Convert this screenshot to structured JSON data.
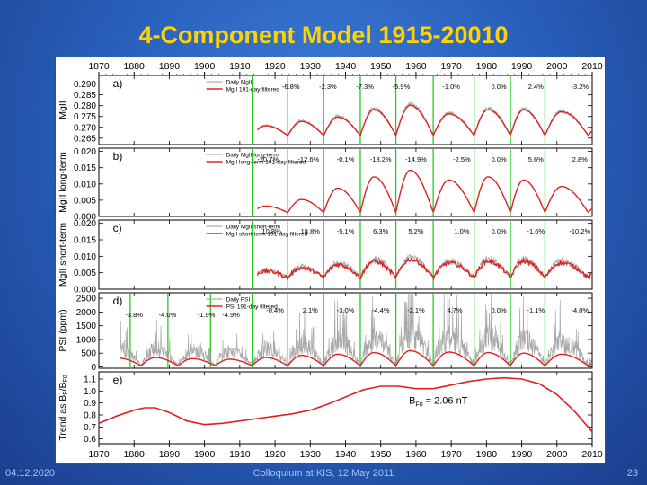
{
  "slide": {
    "title": "4-Component Model 1915-20010",
    "footer_date": "04.12.2020",
    "footer_event": "Colloquium at KIS, 12 May 2011",
    "page_number": "23"
  },
  "colors": {
    "daily": "#999999",
    "filtered": "#e02020",
    "cycle_line": "#22cc22",
    "axis": "#000000"
  },
  "chart_data": {
    "type": "line",
    "x_range": [
      1870,
      2010
    ],
    "x_ticks": [
      1870,
      1880,
      1890,
      1900,
      1910,
      1920,
      1930,
      1940,
      1950,
      1960,
      1970,
      1980,
      1990,
      2000,
      2010
    ],
    "cycle_minima": [
      1913.5,
      1923.6,
      1933.8,
      1944.2,
      1954.3,
      1964.9,
      1976.5,
      1986.8,
      1996.6
    ],
    "panels": [
      {
        "key": "a",
        "label": "a)",
        "ylabel": "MgII",
        "ylim": [
          0.262,
          0.294
        ],
        "yticks": [
          "0.290",
          "0.285",
          "0.280",
          "0.275",
          "0.270",
          "0.265"
        ],
        "ytick_values": [
          0.29,
          0.285,
          0.28,
          0.275,
          0.27,
          0.265
        ],
        "legend": [
          "Daily MgII",
          "MgII 191-day filtered"
        ],
        "data_start": 1915,
        "baseline": 0.2662,
        "amplitudes": [
          0.0045,
          0.0065,
          0.0085,
          0.012,
          0.014,
          0.01,
          0.012,
          0.012,
          0.011,
          0.006
        ],
        "noise": 0.006,
        "percents": [
          "-6.8%",
          "-2.3%",
          "-7.3%",
          "-5.9%",
          "-1.0%",
          "0.0%",
          "2.4%",
          "-3.2%"
        ],
        "percent_years": [
          1924.5,
          1935.0,
          1945.5,
          1955.8,
          1970.0,
          1983.5,
          1994.0,
          2006.5
        ]
      },
      {
        "key": "b",
        "label": "b)",
        "ylabel": "MgII long-term",
        "ylim": [
          0.0,
          0.021
        ],
        "yticks": [
          "0.020",
          "0.015",
          "0.010",
          "0.005",
          "0.000"
        ],
        "ytick_values": [
          0.02,
          0.015,
          0.01,
          0.005,
          0.0
        ],
        "legend": [
          "Daily MgII long-term",
          "MgII long-term 191-day filtered"
        ],
        "data_start": 1915,
        "baseline": 0.0012,
        "amplitudes": [
          0.002,
          0.004,
          0.0075,
          0.011,
          0.013,
          0.01,
          0.011,
          0.01,
          0.008,
          0.0035
        ],
        "noise": 0.0,
        "percents": [
          "-20.7%",
          "-12.6%",
          "-0.1%",
          "-18.2%",
          "-14.9%",
          "-2.5%",
          "0.0%",
          "5.6%",
          "2.8%"
        ],
        "percent_years": [
          1918.0,
          1929.5,
          1940.0,
          1950.0,
          1960.0,
          1973.0,
          1983.5,
          1994.0,
          2006.5
        ]
      },
      {
        "key": "c",
        "label": "c)",
        "ylabel": "MgII short-term",
        "ylim": [
          0.0,
          0.021
        ],
        "yticks": [
          "0.020",
          "0.015",
          "0.010",
          "0.005",
          "0.000"
        ],
        "ytick_values": [
          0.02,
          0.015,
          0.01,
          0.005,
          0.0
        ],
        "legend": [
          "Daily MgII short-term",
          "MgII short-term 191-day filtered"
        ],
        "data_start": 1915,
        "baseline": 0.0035,
        "amplitudes": [
          0.002,
          0.003,
          0.004,
          0.005,
          0.0055,
          0.0045,
          0.005,
          0.005,
          0.0045,
          0.003
        ],
        "noise": 0.007,
        "percents": [
          "10.8%",
          "18.8%",
          "-5.1%",
          "6.3%",
          "5.2%",
          "1.0%",
          "0.0%",
          "-1.6%",
          "-10.2%"
        ],
        "percent_years": [
          1919.0,
          1930.0,
          1940.0,
          1950.0,
          1960.0,
          1973.0,
          1983.5,
          1994.0,
          2006.5
        ]
      },
      {
        "key": "d",
        "label": "d)",
        "ylabel": "PSI (ppm)",
        "ylim": [
          -50,
          2700
        ],
        "yticks": [
          "2500",
          "2000",
          "1500",
          "1000",
          "500",
          "0"
        ],
        "ytick_values": [
          2500,
          2000,
          1500,
          1000,
          500,
          0
        ],
        "legend": [
          "Daily PSI",
          "PSI 191-day filtered"
        ],
        "data_start": 1876,
        "baseline": 40,
        "amplitudes": [
          280,
          300,
          260,
          240,
          300,
          380,
          420,
          480,
          550,
          500,
          480,
          460,
          420,
          250
        ],
        "noise": 1800,
        "percents": [
          "-3.8%",
          "-4.0%",
          "-1.9%",
          "-4.9%",
          "-0.4%",
          "2.1%",
          "-3.0%",
          "-4.4%",
          "-2.1%",
          "4.7%",
          "0.0%",
          "-1.1%",
          "-4.0%"
        ],
        "percent_years": [
          1880.0,
          1889.5,
          1900.5,
          1907.5,
          1920.0,
          1930.0,
          1940.0,
          1950.0,
          1960.0,
          1971.0,
          1983.5,
          1994.0,
          2006.5
        ],
        "extra_cycle_lines": [
          1878.9,
          1889.6,
          1901.7
        ]
      },
      {
        "key": "e",
        "label": "e)",
        "ylabel": "Trend as B_F/B_F0",
        "ylim": [
          0.56,
          1.16
        ],
        "yticks": [
          "1.1",
          "1.0",
          "0.9",
          "0.8",
          "0.7",
          "0.6"
        ],
        "ytick_values": [
          1.1,
          1.0,
          0.9,
          0.8,
          0.7,
          0.6
        ],
        "annotation": "B_F0 = 2.06 nT",
        "annotation_main": "B",
        "annotation_sub": "F0",
        "annotation_rest": " = 2.06 nT",
        "trend_x": [
          1870,
          1875,
          1880,
          1883,
          1886,
          1890,
          1895,
          1900,
          1905,
          1910,
          1915,
          1920,
          1925,
          1930,
          1935,
          1940,
          1945,
          1950,
          1955,
          1960,
          1965,
          1970,
          1975,
          1980,
          1985,
          1990,
          1995,
          2000,
          2005,
          2010
        ],
        "trend_y": [
          0.73,
          0.79,
          0.84,
          0.86,
          0.86,
          0.82,
          0.75,
          0.72,
          0.73,
          0.75,
          0.77,
          0.79,
          0.81,
          0.84,
          0.89,
          0.95,
          1.01,
          1.04,
          1.04,
          1.02,
          1.02,
          1.05,
          1.08,
          1.1,
          1.11,
          1.1,
          1.06,
          0.97,
          0.83,
          0.66
        ]
      }
    ]
  }
}
